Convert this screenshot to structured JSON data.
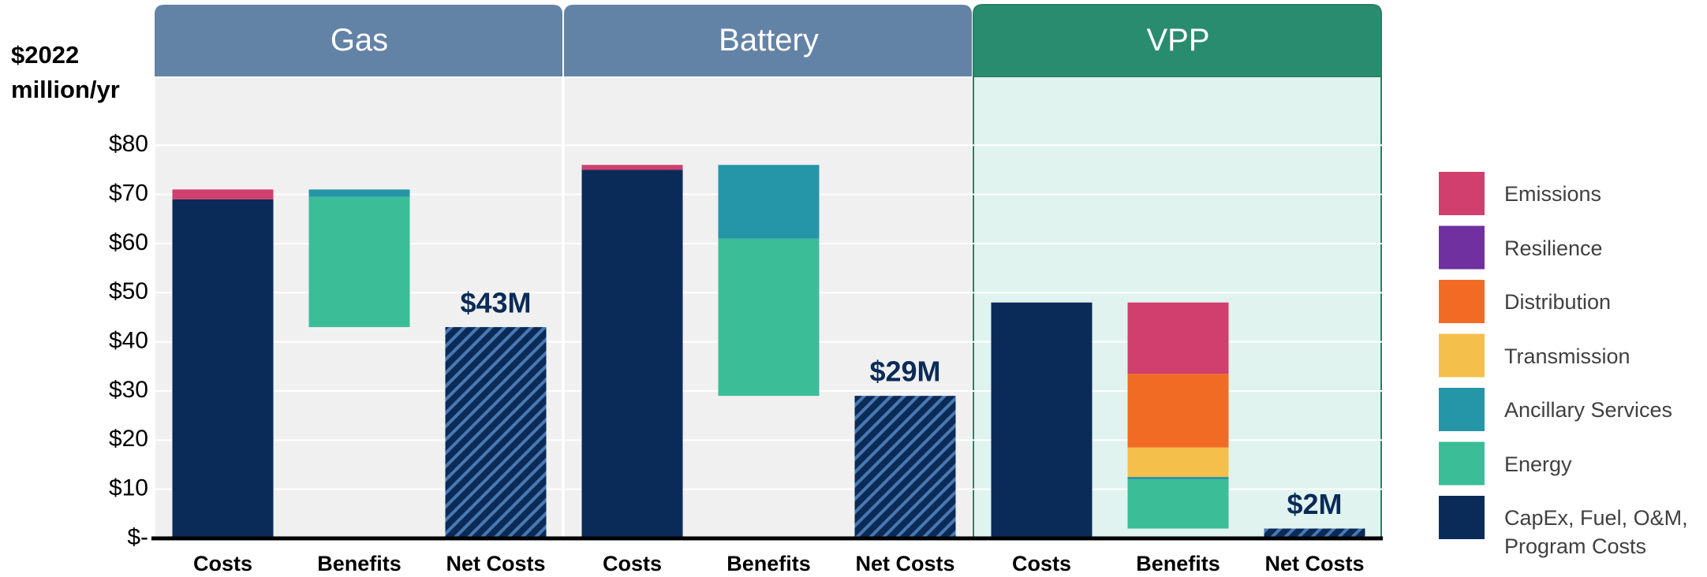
{
  "chart_data": {
    "type": "waterfall",
    "ylabel": "$2022 million/yr",
    "ylim": [
      0,
      94
    ],
    "yticks": [
      {
        "value": 0,
        "label": "$-"
      },
      {
        "value": 10,
        "label": "$10"
      },
      {
        "value": 20,
        "label": "$20"
      },
      {
        "value": 30,
        "label": "$30"
      },
      {
        "value": 40,
        "label": "$40"
      },
      {
        "value": 50,
        "label": "$50"
      },
      {
        "value": 60,
        "label": "$60"
      },
      {
        "value": 70,
        "label": "$70"
      },
      {
        "value": 80,
        "label": "$80"
      }
    ],
    "grid": true,
    "legend": "right",
    "panels": [
      {
        "name": "Gas",
        "header_color": "#6383a6",
        "background": "#f0f0f0",
        "border": "#ffffff",
        "categories": [
          "Costs",
          "Benefits",
          "Net Costs"
        ]
      },
      {
        "name": "Battery",
        "header_color": "#6383a6",
        "background": "#f0f0f0",
        "border": "#ffffff",
        "categories": [
          "Costs",
          "Benefits",
          "Net Costs"
        ]
      },
      {
        "name": "VPP",
        "header_color": "#2a8c6e",
        "background": "#e0f3ef",
        "border": "#2a7f63",
        "categories": [
          "Costs",
          "Benefits",
          "Net Costs"
        ]
      }
    ],
    "series": [
      {
        "name": "Emissions",
        "color": "#d03f6e",
        "costs": [
          2,
          1,
          0
        ],
        "benefits": [
          0,
          0,
          14.5
        ]
      },
      {
        "name": "Resilience",
        "color": "#7030a0",
        "costs": [
          0,
          0,
          0
        ],
        "benefits": [
          0,
          0,
          0
        ]
      },
      {
        "name": "Distribution",
        "color": "#f26b25",
        "costs": [
          0,
          0,
          0
        ],
        "benefits": [
          0,
          0,
          15
        ]
      },
      {
        "name": "Transmission",
        "color": "#f4bf4a",
        "costs": [
          0,
          0,
          0
        ],
        "benefits": [
          0,
          0,
          6
        ]
      },
      {
        "name": "Ancillary Services",
        "color": "#2596a8",
        "costs": [
          0,
          0,
          0
        ],
        "benefits": [
          1.5,
          15,
          0.5
        ]
      },
      {
        "name": "Energy",
        "color": "#3bbd98",
        "costs": [
          0,
          0,
          0
        ],
        "benefits": [
          26.5,
          32,
          10
        ]
      },
      {
        "name": "CapEx, Fuel, O&M, Program Costs",
        "color": "#0a2b57",
        "costs": [
          69,
          75,
          48
        ],
        "benefits": [
          0,
          0,
          0
        ]
      }
    ],
    "net": {
      "color": "#0a2b57",
      "hatch_color": "#4a78b0",
      "values": [
        43,
        29,
        2
      ],
      "value_labels": [
        "$43M",
        "$29M",
        "$2M"
      ]
    }
  }
}
